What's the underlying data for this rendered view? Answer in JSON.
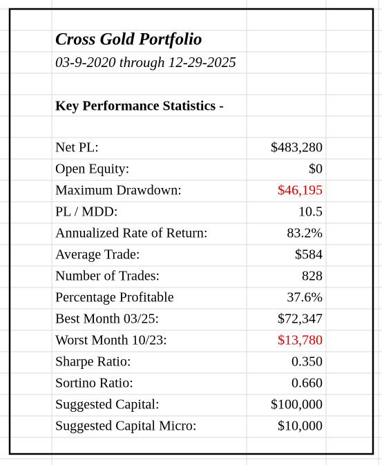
{
  "header": {
    "title": "Cross Gold Portfolio",
    "subtitle": "03-9-2020 through 12-29-2025"
  },
  "section": {
    "title": "Key Performance Statistics -"
  },
  "table": {
    "rows": [
      {
        "label": "Net PL:",
        "value": "$483,280"
      },
      {
        "label": "Open Equity:",
        "value": "$0"
      },
      {
        "label": "Maximum  Drawdown:",
        "value": "$46,195",
        "color": "#e00000"
      },
      {
        "label": "PL / MDD:",
        "value": "10.5"
      },
      {
        "label": "Annualized Rate of Return:",
        "value": "83.2%"
      },
      {
        "label": "Average Trade:",
        "value": "$584"
      },
      {
        "label": "Number of Trades:",
        "value": "828"
      },
      {
        "label": "Percentage Profitable",
        "value": "37.6%"
      },
      {
        "label": "Best Month 03/25:",
        "value": "$72,347"
      },
      {
        "label": "Worst Month 10/23:",
        "value": "$13,780",
        "color": "#e00000"
      },
      {
        "label": "Sharpe Ratio:",
        "value": "0.350"
      },
      {
        "label": "Sortino Ratio:",
        "value": "0.660"
      },
      {
        "label": "Suggested Capital:",
        "value": "$100,000"
      },
      {
        "label": "Suggested Capital Micro:",
        "value": "$10,000"
      }
    ]
  }
}
